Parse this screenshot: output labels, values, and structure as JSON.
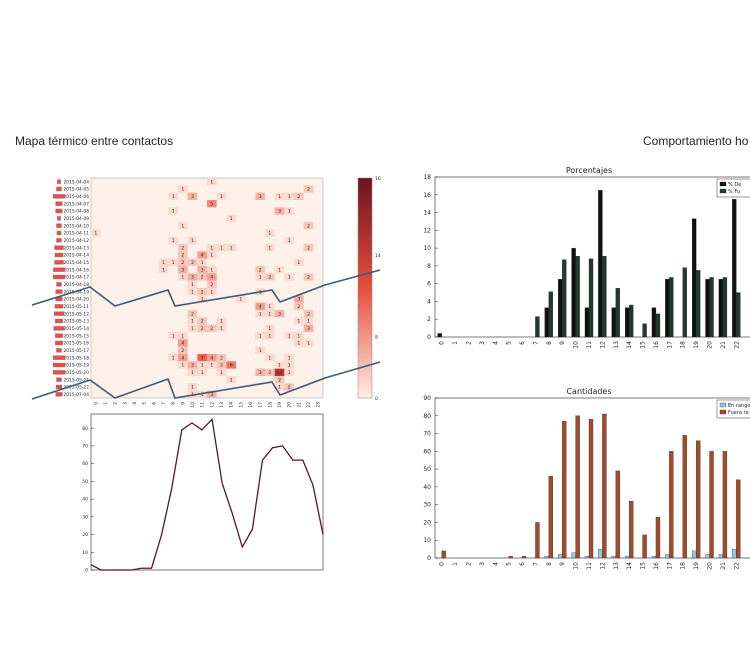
{
  "titles": {
    "left": "Mapa térmico entre contactos",
    "right": "Comportamiento ho"
  },
  "chart_data": [
    {
      "type": "heatmap",
      "title": "",
      "dates": [
        "2015-04-04",
        "2015-04-05",
        "2015-04-06",
        "2015-04-07",
        "2015-04-08",
        "2015-04-09",
        "2015-04-10",
        "2015-04-11",
        "2015-04-12",
        "2015-04-13",
        "2015-04-14",
        "2015-04-15",
        "2015-04-16",
        "2015-04-17",
        "2015-04-18",
        "2015-04-19",
        "2015-04-20",
        "2015-05-11",
        "2015-05-12",
        "2015-05-13",
        "2015-05-14",
        "2015-05-15",
        "2015-05-16",
        "2015-05-17",
        "2015-05-18",
        "2015-05-19",
        "2015-05-20",
        "2015-05-21",
        "2015-05-22",
        "2015-07-04"
      ],
      "x_categories": [
        "0",
        "1",
        "2",
        "3",
        "4",
        "5",
        "6",
        "7",
        "8",
        "9",
        "10",
        "11",
        "12",
        "13",
        "14",
        "15",
        "16",
        "17",
        "18",
        "19",
        "20",
        "21",
        "22",
        "23"
      ],
      "colorbar_ticks": [
        "16",
        "14",
        "8",
        "0"
      ],
      "cells": [
        {
          "row": 0,
          "col": 12,
          "v": 1
        },
        {
          "row": 1,
          "col": 9,
          "v": 1
        },
        {
          "row": 1,
          "col": 22,
          "v": 2
        },
        {
          "row": 2,
          "col": 8,
          "v": 1
        },
        {
          "row": 2,
          "col": 10,
          "v": 3
        },
        {
          "row": 2,
          "col": 13,
          "v": 1
        },
        {
          "row": 2,
          "col": 17,
          "v": 3
        },
        {
          "row": 2,
          "col": 19,
          "v": 1
        },
        {
          "row": 2,
          "col": 20,
          "v": 1
        },
        {
          "row": 2,
          "col": 21,
          "v": 2
        },
        {
          "row": 3,
          "col": 12,
          "v": 5
        },
        {
          "row": 4,
          "col": 8,
          "v": 1
        },
        {
          "row": 4,
          "col": 19,
          "v": 3
        },
        {
          "row": 4,
          "col": 20,
          "v": 1
        },
        {
          "row": 5,
          "col": 14,
          "v": 1
        },
        {
          "row": 6,
          "col": 9,
          "v": 1
        },
        {
          "row": 6,
          "col": 22,
          "v": 2
        },
        {
          "row": 7,
          "col": 0,
          "v": 1
        },
        {
          "row": 7,
          "col": 18,
          "v": 1
        },
        {
          "row": 8,
          "col": 8,
          "v": 1
        },
        {
          "row": 8,
          "col": 10,
          "v": 1
        },
        {
          "row": 8,
          "col": 20,
          "v": 1
        },
        {
          "row": 9,
          "col": 9,
          "v": 2
        },
        {
          "row": 9,
          "col": 12,
          "v": 1
        },
        {
          "row": 9,
          "col": 13,
          "v": 1
        },
        {
          "row": 9,
          "col": 14,
          "v": 1
        },
        {
          "row": 9,
          "col": 18,
          "v": 1
        },
        {
          "row": 9,
          "col": 22,
          "v": 2
        },
        {
          "row": 10,
          "col": 9,
          "v": 2
        },
        {
          "row": 10,
          "col": 11,
          "v": 4
        },
        {
          "row": 10,
          "col": 12,
          "v": 1
        },
        {
          "row": 11,
          "col": 7,
          "v": 1
        },
        {
          "row": 11,
          "col": 8,
          "v": 1
        },
        {
          "row": 11,
          "col": 9,
          "v": 2
        },
        {
          "row": 11,
          "col": 10,
          "v": 2
        },
        {
          "row": 11,
          "col": 11,
          "v": 1
        },
        {
          "row": 11,
          "col": 21,
          "v": 1
        },
        {
          "row": 12,
          "col": 7,
          "v": 1
        },
        {
          "row": 12,
          "col": 9,
          "v": 3
        },
        {
          "row": 12,
          "col": 11,
          "v": 3
        },
        {
          "row": 12,
          "col": 12,
          "v": 1
        },
        {
          "row": 12,
          "col": 17,
          "v": 2
        },
        {
          "row": 12,
          "col": 19,
          "v": 1
        },
        {
          "row": 13,
          "col": 9,
          "v": 1
        },
        {
          "row": 13,
          "col": 10,
          "v": 3
        },
        {
          "row": 13,
          "col": 11,
          "v": 2
        },
        {
          "row": 13,
          "col": 12,
          "v": 4
        },
        {
          "row": 13,
          "col": 17,
          "v": 1
        },
        {
          "row": 13,
          "col": 18,
          "v": 2
        },
        {
          "row": 13,
          "col": 20,
          "v": 1
        },
        {
          "row": 13,
          "col": 22,
          "v": 2
        },
        {
          "row": 14,
          "col": 10,
          "v": 1
        },
        {
          "row": 14,
          "col": 12,
          "v": 2
        },
        {
          "row": 15,
          "col": 10,
          "v": 1
        },
        {
          "row": 15,
          "col": 11,
          "v": 2
        },
        {
          "row": 15,
          "col": 12,
          "v": 1
        },
        {
          "row": 15,
          "col": 17,
          "v": 1
        },
        {
          "row": 16,
          "col": 11,
          "v": 1
        },
        {
          "row": 16,
          "col": 15,
          "v": 1
        },
        {
          "row": 16,
          "col": 21,
          "v": 3
        },
        {
          "row": 17,
          "col": 17,
          "v": 4
        },
        {
          "row": 17,
          "col": 18,
          "v": 1
        },
        {
          "row": 17,
          "col": 21,
          "v": 2
        },
        {
          "row": 18,
          "col": 10,
          "v": 2
        },
        {
          "row": 18,
          "col": 17,
          "v": 1
        },
        {
          "row": 18,
          "col": 18,
          "v": 1
        },
        {
          "row": 18,
          "col": 19,
          "v": 3
        },
        {
          "row": 18,
          "col": 22,
          "v": 2
        },
        {
          "row": 19,
          "col": 10,
          "v": 1
        },
        {
          "row": 19,
          "col": 11,
          "v": 2
        },
        {
          "row": 19,
          "col": 13,
          "v": 1
        },
        {
          "row": 19,
          "col": 21,
          "v": 1
        },
        {
          "row": 19,
          "col": 22,
          "v": 1
        },
        {
          "row": 20,
          "col": 10,
          "v": 1
        },
        {
          "row": 20,
          "col": 11,
          "v": 2
        },
        {
          "row": 20,
          "col": 12,
          "v": 2
        },
        {
          "row": 20,
          "col": 13,
          "v": 1
        },
        {
          "row": 20,
          "col": 18,
          "v": 1
        },
        {
          "row": 20,
          "col": 22,
          "v": 3
        },
        {
          "row": 21,
          "col": 8,
          "v": 1
        },
        {
          "row": 21,
          "col": 9,
          "v": 1
        },
        {
          "row": 21,
          "col": 17,
          "v": 1
        },
        {
          "row": 21,
          "col": 18,
          "v": 1
        },
        {
          "row": 21,
          "col": 20,
          "v": 1
        },
        {
          "row": 21,
          "col": 21,
          "v": 1
        },
        {
          "row": 22,
          "col": 9,
          "v": 4
        },
        {
          "row": 22,
          "col": 21,
          "v": 1
        },
        {
          "row": 22,
          "col": 22,
          "v": 1
        },
        {
          "row": 23,
          "col": 9,
          "v": 2
        },
        {
          "row": 23,
          "col": 17,
          "v": 1
        },
        {
          "row": 24,
          "col": 8,
          "v": 1
        },
        {
          "row": 24,
          "col": 9,
          "v": 4
        },
        {
          "row": 24,
          "col": 11,
          "v": 7
        },
        {
          "row": 24,
          "col": 12,
          "v": 4
        },
        {
          "row": 24,
          "col": 13,
          "v": 2
        },
        {
          "row": 24,
          "col": 18,
          "v": 1
        },
        {
          "row": 24,
          "col": 20,
          "v": 1
        },
        {
          "row": 25,
          "col": 9,
          "v": 1
        },
        {
          "row": 25,
          "col": 10,
          "v": 3
        },
        {
          "row": 25,
          "col": 11,
          "v": 1
        },
        {
          "row": 25,
          "col": 12,
          "v": 1
        },
        {
          "row": 25,
          "col": 13,
          "v": 2
        },
        {
          "row": 25,
          "col": 14,
          "v": 6
        },
        {
          "row": 25,
          "col": 19,
          "v": 1
        },
        {
          "row": 25,
          "col": 20,
          "v": 1
        },
        {
          "row": 26,
          "col": 10,
          "v": 1
        },
        {
          "row": 26,
          "col": 11,
          "v": 1
        },
        {
          "row": 26,
          "col": 13,
          "v": 1
        },
        {
          "row": 26,
          "col": 17,
          "v": 3
        },
        {
          "row": 26,
          "col": 18,
          "v": 2
        },
        {
          "row": 26,
          "col": 19,
          "v": 11
        },
        {
          "row": 26,
          "col": 20,
          "v": 1
        },
        {
          "row": 27,
          "col": 14,
          "v": 1
        },
        {
          "row": 27,
          "col": 19,
          "v": 2
        },
        {
          "row": 28,
          "col": 10,
          "v": 1
        },
        {
          "row": 28,
          "col": 19,
          "v": 1
        },
        {
          "row": 28,
          "col": 20,
          "v": 2
        },
        {
          "row": 29,
          "col": 10,
          "v": 1
        },
        {
          "row": 29,
          "col": 11,
          "v": 1
        },
        {
          "row": 29,
          "col": 12,
          "v": 3
        }
      ],
      "max_value": 16
    },
    {
      "type": "line",
      "title": "",
      "x": [
        0,
        1,
        2,
        3,
        4,
        5,
        6,
        7,
        8,
        9,
        10,
        11,
        12,
        13,
        14,
        15,
        16,
        17,
        18,
        19,
        20,
        21,
        22,
        23
      ],
      "values": [
        3,
        0,
        0,
        0,
        0,
        1,
        1,
        20,
        46,
        79,
        83,
        79,
        85,
        49,
        32,
        13,
        23,
        62,
        69,
        70,
        62,
        62,
        48,
        20
      ],
      "ylim": [
        0,
        88
      ],
      "y_ticks": [
        0,
        10,
        20,
        30,
        40,
        50,
        60,
        70,
        80
      ]
    },
    {
      "type": "bar",
      "title": "Porcentajes",
      "categories": [
        "0",
        "1",
        "2",
        "3",
        "4",
        "5",
        "6",
        "7",
        "8",
        "9",
        "10",
        "11",
        "12",
        "13",
        "14",
        "15",
        "16",
        "17",
        "18",
        "19",
        "20",
        "21",
        "22"
      ],
      "series": [
        {
          "name": "% De",
          "color": "#111111",
          "values": [
            0.4,
            0,
            0,
            0,
            0,
            0,
            0,
            0,
            3.3,
            6.5,
            10,
            3.3,
            16.5,
            3.3,
            3.3,
            0,
            3.3,
            6.5,
            0,
            13.3,
            6.5,
            6.5,
            15.5
          ]
        },
        {
          "name": "% Fu",
          "color": "#1f3a2e",
          "values": [
            0,
            0,
            0,
            0,
            0,
            0,
            0,
            2.3,
            5.1,
            8.7,
            9.1,
            8.8,
            9.1,
            5.5,
            3.6,
            1.5,
            2.6,
            6.7,
            7.8,
            7.5,
            6.7,
            6.7,
            5
          ]
        }
      ],
      "ylim": [
        0,
        18
      ],
      "y_ticks": [
        0,
        2,
        4,
        6,
        8,
        10,
        12,
        14,
        16,
        18
      ]
    },
    {
      "type": "bar",
      "title": "Cantidades",
      "categories": [
        "0",
        "1",
        "2",
        "3",
        "4",
        "5",
        "6",
        "7",
        "8",
        "9",
        "10",
        "11",
        "12",
        "13",
        "14",
        "15",
        "16",
        "17",
        "18",
        "19",
        "20",
        "21",
        "22"
      ],
      "series": [
        {
          "name": "En rango",
          "color": "#8fc9dd",
          "values": [
            0,
            0,
            0,
            0,
            0,
            0,
            0,
            0,
            1,
            2,
            3,
            1,
            5,
            1,
            1,
            0,
            1,
            2,
            0,
            4,
            2,
            2,
            5
          ]
        },
        {
          "name": "Fuera ra",
          "color": "#a44a2c",
          "values": [
            4,
            0,
            0,
            0,
            0,
            1,
            1,
            20,
            46,
            77,
            80,
            78,
            81,
            49,
            32,
            13,
            23,
            60,
            69,
            66,
            60,
            60,
            44
          ]
        }
      ],
      "ylim": [
        0,
        90
      ],
      "y_ticks": [
        0,
        10,
        20,
        30,
        40,
        50,
        60,
        70,
        80,
        90
      ]
    }
  ]
}
